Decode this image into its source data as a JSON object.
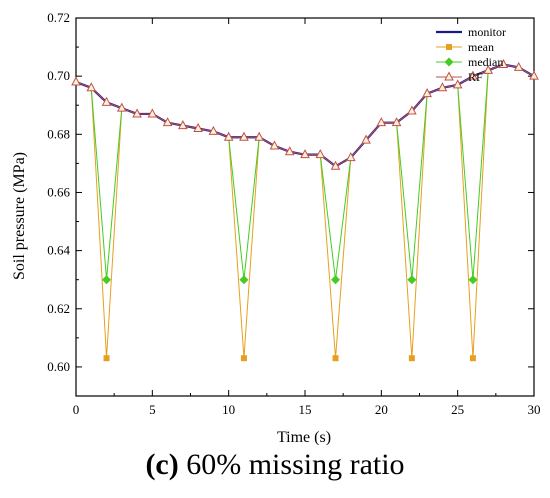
{
  "chart_data": {
    "type": "line",
    "xlabel": "Time (s)",
    "ylabel": "Soil pressure (MPa)",
    "xlim": [
      0,
      30
    ],
    "ylim": [
      0.59,
      0.72
    ],
    "x_ticks": [
      0,
      5,
      10,
      15,
      20,
      25,
      30
    ],
    "y_ticks": [
      0.6,
      0.62,
      0.64,
      0.66,
      0.68,
      0.7,
      0.72
    ],
    "y_tick_labels": [
      "0.60",
      "0.62",
      "0.64",
      "0.66",
      "0.68",
      "0.70",
      "0.72"
    ],
    "grid": false,
    "legend_position": "top-right",
    "x": [
      0,
      1,
      2,
      3,
      4,
      5,
      6,
      7,
      8,
      9,
      10,
      11,
      12,
      13,
      14,
      15,
      16,
      17,
      18,
      19,
      20,
      21,
      22,
      23,
      24,
      25,
      26,
      27,
      28,
      29,
      30
    ],
    "series": [
      {
        "name": "monitor",
        "color": "#1a1a8c",
        "marker": "none",
        "values": [
          0.698,
          0.696,
          0.691,
          0.689,
          0.687,
          0.687,
          0.684,
          0.683,
          0.682,
          0.681,
          0.679,
          0.679,
          0.679,
          0.676,
          0.674,
          0.673,
          0.673,
          0.669,
          0.672,
          0.678,
          0.684,
          0.684,
          0.688,
          0.694,
          0.696,
          0.697,
          0.7,
          0.702,
          0.704,
          0.703,
          0.7
        ]
      },
      {
        "name": "mean",
        "color": "#e6a020",
        "marker": "square",
        "values": [
          0.698,
          0.696,
          0.603,
          0.689,
          0.687,
          0.687,
          0.684,
          0.683,
          0.682,
          0.681,
          0.679,
          0.603,
          0.679,
          0.676,
          0.674,
          0.673,
          0.673,
          0.603,
          0.672,
          0.678,
          0.684,
          0.684,
          0.603,
          0.694,
          0.696,
          0.697,
          0.603,
          0.702,
          0.704,
          0.703,
          0.7
        ]
      },
      {
        "name": "median",
        "color": "#44cc22",
        "marker": "diamond",
        "values": [
          0.698,
          0.696,
          0.63,
          0.689,
          0.687,
          0.687,
          0.684,
          0.683,
          0.682,
          0.681,
          0.679,
          0.63,
          0.679,
          0.676,
          0.674,
          0.673,
          0.673,
          0.63,
          0.672,
          0.678,
          0.684,
          0.684,
          0.63,
          0.694,
          0.696,
          0.697,
          0.63,
          0.702,
          0.704,
          0.703,
          0.7
        ]
      },
      {
        "name": "RF",
        "color": "#c0504d",
        "marker": "triangle",
        "values": [
          0.698,
          0.696,
          0.691,
          0.689,
          0.687,
          0.687,
          0.684,
          0.683,
          0.682,
          0.681,
          0.679,
          0.679,
          0.679,
          0.676,
          0.674,
          0.673,
          0.673,
          0.669,
          0.672,
          0.678,
          0.684,
          0.684,
          0.688,
          0.694,
          0.696,
          0.697,
          0.7,
          0.702,
          0.704,
          0.703,
          0.7
        ]
      }
    ]
  },
  "caption": {
    "letter": "(c)",
    "text": " 60% missing ratio"
  }
}
